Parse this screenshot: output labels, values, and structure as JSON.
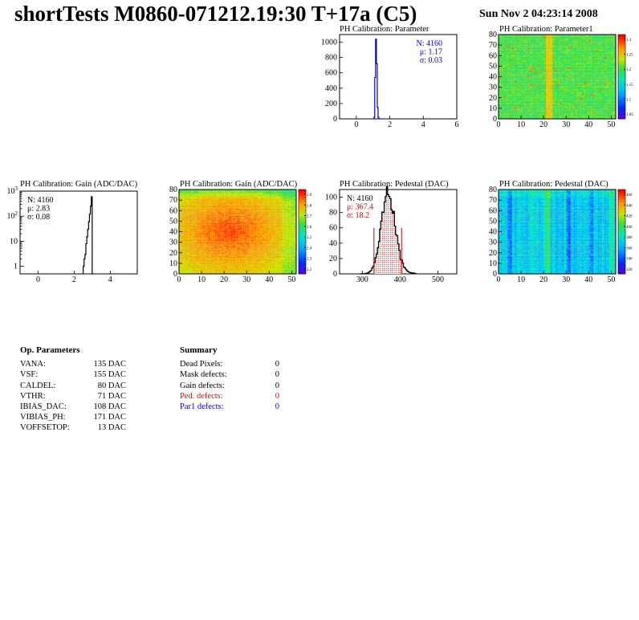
{
  "header": {
    "title": "shortTests M0860-071212.19:30 T+17a (C5)",
    "date": "Sun Nov  2 04:23:14 2008"
  },
  "chart_data": [
    {
      "id": "p1",
      "type": "histogram",
      "title": "PH Calibration: Parameter",
      "xlim": [
        -1,
        6
      ],
      "ylim": [
        0,
        1100
      ],
      "xticks": [
        0,
        2,
        4,
        6
      ],
      "yticks": [
        0,
        200,
        400,
        600,
        800,
        1000
      ],
      "bins": [
        [
          1.0,
          0
        ],
        [
          1.05,
          20
        ],
        [
          1.1,
          540
        ],
        [
          1.15,
          1040
        ],
        [
          1.2,
          720
        ],
        [
          1.25,
          150
        ],
        [
          1.3,
          20
        ],
        [
          1.35,
          0
        ]
      ],
      "line_color": "#0000dd",
      "stats": [
        {
          "text": "N: 4160",
          "color": "#0000dd"
        },
        {
          "text": "μ: 1.17",
          "color": "#0000dd"
        },
        {
          "text": "σ: 0.03",
          "color": "#0000dd"
        }
      ],
      "stats_position": "top-right"
    },
    {
      "id": "p2",
      "type": "heatmap",
      "title": "PH Calibration: Parameter1",
      "xlim": [
        0,
        52
      ],
      "ylim": [
        0,
        80
      ],
      "xticks": [
        0,
        10,
        20,
        30,
        40,
        50
      ],
      "yticks": [
        0,
        10,
        20,
        30,
        40,
        50,
        60,
        70,
        80
      ],
      "colorbar_ticks": [
        "1.3",
        "1.25",
        "1.2",
        "1.15",
        "1.1",
        "1.05"
      ],
      "pattern": "param1"
    },
    {
      "id": "p3",
      "type": "histogram",
      "title": "PH Calibration: Gain (ADC/DAC)",
      "xlim": [
        -1,
        5.5
      ],
      "yscale": "log",
      "ylim": [
        0.5,
        1000
      ],
      "xticks": [
        0,
        2,
        4
      ],
      "yticks": [
        {
          "value": 1,
          "base": "1",
          "exp": ""
        },
        {
          "value": 10,
          "base": "10",
          "exp": ""
        },
        {
          "value": 100,
          "base": "10",
          "exp": "2"
        },
        {
          "value": 1000,
          "base": "10",
          "exp": "3"
        }
      ],
      "bins": [
        [
          2.5,
          1
        ],
        [
          2.55,
          2
        ],
        [
          2.6,
          3
        ],
        [
          2.65,
          8
        ],
        [
          2.7,
          15
        ],
        [
          2.75,
          30
        ],
        [
          2.8,
          60
        ],
        [
          2.85,
          120
        ],
        [
          2.9,
          250
        ],
        [
          2.95,
          600
        ],
        [
          3.0,
          0.5
        ]
      ],
      "line_color": "#000000",
      "stats": [
        {
          "text": "N: 4160",
          "color": "#000000"
        },
        {
          "text": "μ: 2.83",
          "color": "#000000"
        },
        {
          "text": "σ: 0.08",
          "color": "#000000"
        }
      ],
      "stats_position": "top-left"
    },
    {
      "id": "p4",
      "type": "heatmap",
      "title": "PH Calibration: Gain (ADC/DAC)",
      "xlim": [
        0,
        52
      ],
      "ylim": [
        0,
        80
      ],
      "xticks": [
        0,
        10,
        20,
        30,
        40,
        50
      ],
      "yticks": [
        0,
        10,
        20,
        30,
        40,
        50,
        60,
        70,
        80
      ],
      "colorbar_ticks": [
        "2.9",
        "2.8",
        "2.7",
        "2.6",
        "2.5",
        "2.4",
        "2.3",
        "2.2"
      ],
      "pattern": "gain"
    },
    {
      "id": "p5",
      "type": "histogram",
      "title": "PH Calibration: Pedestal (DAC)",
      "xlim": [
        240,
        550
      ],
      "ylim": [
        0,
        110
      ],
      "xticks": [
        300,
        400,
        500
      ],
      "yticks": [
        0,
        20,
        40,
        60,
        80,
        100
      ],
      "mean": 367.4,
      "sigma": 18.2,
      "cut_lines": [
        331,
        404
      ],
      "cut_height": 60,
      "line_color": "#000000",
      "fill_color": "#cc0000",
      "stats": [
        {
          "text": "N: 4160",
          "color": "#000000"
        },
        {
          "text": "μ: 367.4",
          "color": "#dd0000"
        },
        {
          "text": "σ: 18.2",
          "color": "#dd0000"
        }
      ],
      "stats_position": "top-left"
    },
    {
      "id": "p6",
      "type": "heatmap",
      "title": "PH Calibration: Pedestal (DAC)",
      "xlim": [
        0,
        52
      ],
      "ylim": [
        0,
        80
      ],
      "xticks": [
        0,
        10,
        20,
        30,
        40,
        50
      ],
      "yticks": [
        0,
        10,
        20,
        30,
        40,
        50,
        60,
        70,
        80
      ],
      "colorbar_ticks": [
        "460",
        "440",
        "420",
        "400",
        "380",
        "360",
        "340",
        "320"
      ],
      "pattern": "pedestal"
    }
  ],
  "op_parameters": {
    "heading": "Op. Parameters",
    "rows": [
      {
        "name": "VANA:",
        "value": "135 DAC"
      },
      {
        "name": "VSF:",
        "value": "155 DAC"
      },
      {
        "name": "CALDEL:",
        "value": "80 DAC"
      },
      {
        "name": "VTHR:",
        "value": "71 DAC"
      },
      {
        "name": "IBIAS_DAC:",
        "value": "108 DAC"
      },
      {
        "name": "VIBIAS_PH:",
        "value": "171 DAC"
      },
      {
        "name": "VOFFSETOP:",
        "value": "13 DAC"
      }
    ]
  },
  "summary": {
    "heading": "Summary",
    "rows": [
      {
        "name": "Dead Pixels:",
        "value": "0",
        "color": "#000000"
      },
      {
        "name": "Mask defects:",
        "value": "0",
        "color": "#000000"
      },
      {
        "name": "Gain defects:",
        "value": "0",
        "color": "#000000"
      },
      {
        "name": "Ped. defects:",
        "value": "0",
        "color": "#ee0000"
      },
      {
        "name": "Par1 defects:",
        "value": "0",
        "color": "#0000cc"
      }
    ]
  }
}
